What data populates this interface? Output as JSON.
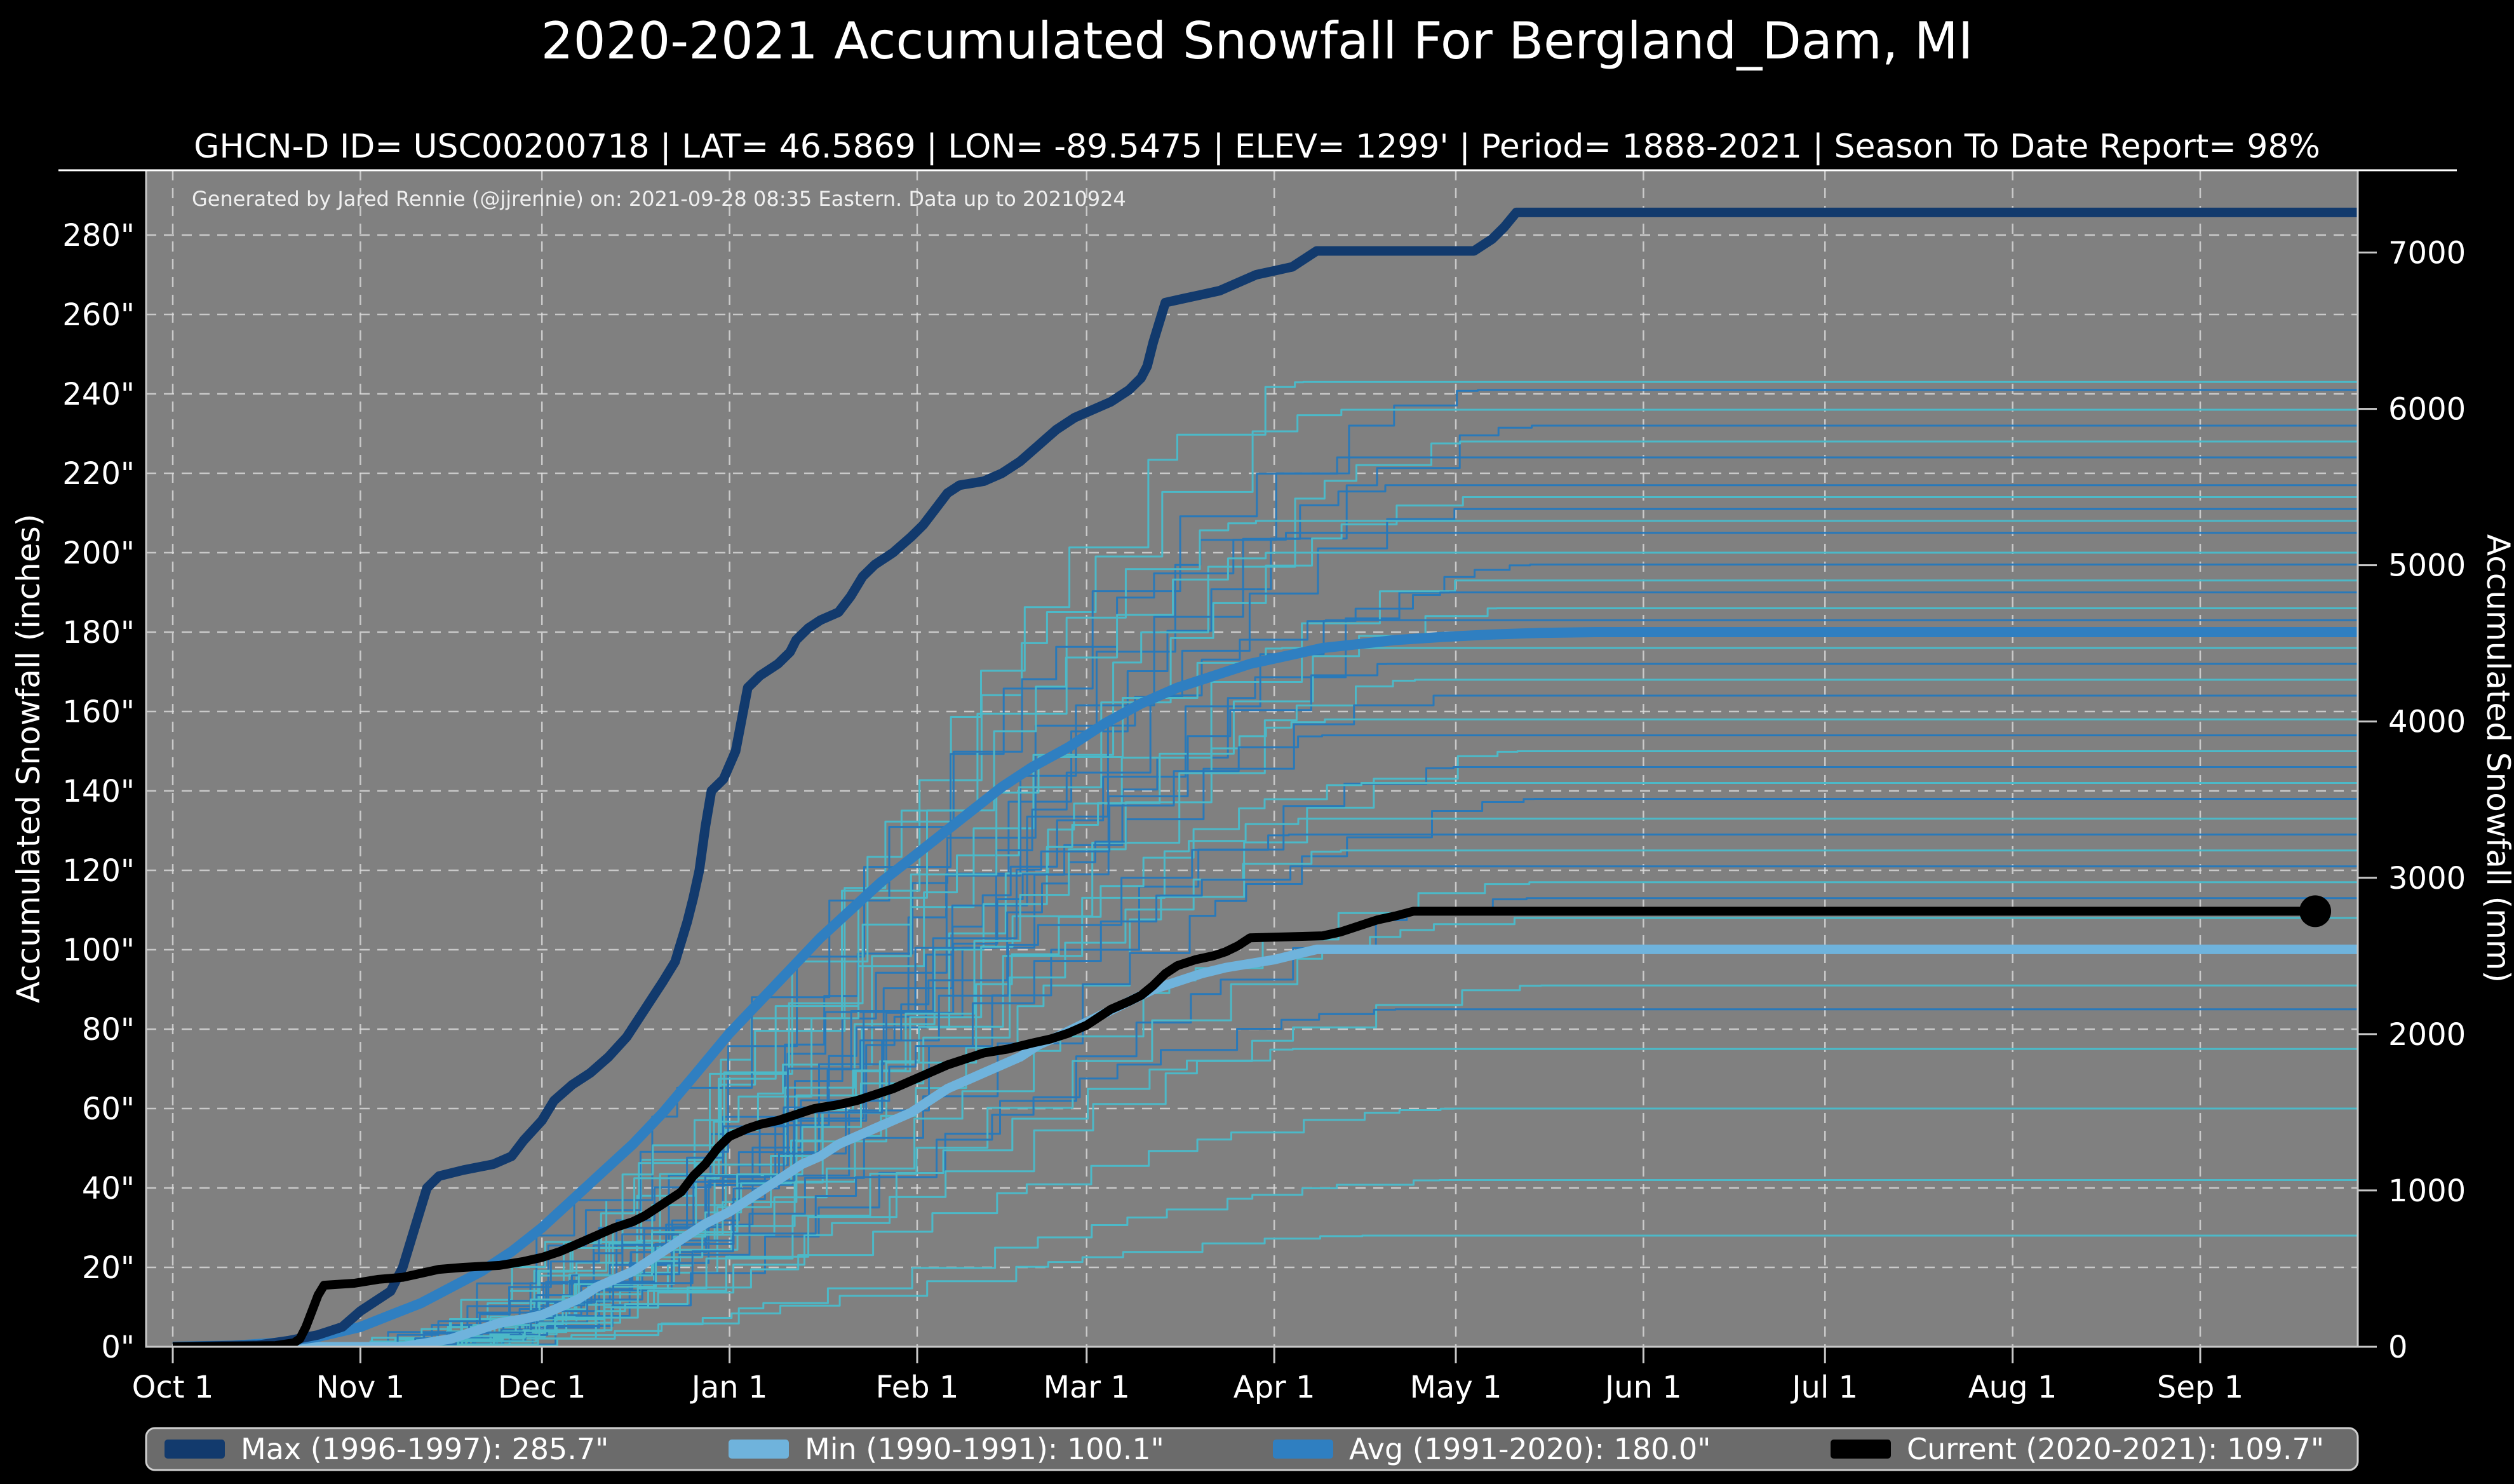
{
  "title": "2020-2021 Accumulated Snowfall For Bergland_Dam, MI",
  "subtitle": "GHCN-D ID= USC00200718 | LAT= 46.5869 | LON= -89.5475 | ELEV= 1299' | Period= 1888-2021 | Season To Date Report= 98%",
  "annotation": "Generated by Jared Rennie (@jjrennie) on: 2021-09-28 08:35 Eastern. Data up to 20210924",
  "colors": {
    "figure_bg": "#000000",
    "plot_bg": "#808080",
    "grid": "#dcdcdc",
    "spine": "#c8c8c8",
    "max": "#123a6d",
    "min": "#6fb3dc",
    "avg": "#2f7fc1",
    "current": "#000000",
    "thin_blue": "#2979b9",
    "thin_teal": "#4cb9c8",
    "legend_bg": "#6b6b6b",
    "legend_border": "#cfcfcf"
  },
  "chart_data": {
    "type": "line",
    "title": "2020-2021 Accumulated Snowfall For Bergland_Dam, MI",
    "subtitle": "GHCN-D ID= USC00200718 | LAT= 46.5869 | LON= -89.5475 | ELEV= 1299' | Period= 1888-2021 | Season To Date Report= 98%",
    "annotation": "Generated by Jared Rennie (@jjrennie) on: 2021-09-28 08:35 Eastern. Data up to 20210924",
    "ylabel_left": "Accumulated Snowfall (inches)",
    "ylabel_right": "Accumulated Snowfall (mm)",
    "grid": true,
    "legend_position": "bottom",
    "x_tick_labels": [
      "Oct 1",
      "Nov 1",
      "Dec 1",
      "Jan 1",
      "Feb 1",
      "Mar 1",
      "Apr 1",
      "May 1",
      "Jun 1",
      "Jul 1",
      "Aug 1",
      "Sep 1"
    ],
    "x_tick_days": [
      0,
      31,
      61,
      92,
      123,
      151,
      182,
      212,
      243,
      273,
      304,
      335
    ],
    "x_range_days": [
      0,
      365
    ],
    "y_left_tick_values": [
      0,
      20,
      40,
      60,
      80,
      100,
      120,
      140,
      160,
      180,
      200,
      220,
      240,
      260,
      280
    ],
    "y_left_tick_labels": [
      "0\"",
      "20\"",
      "40\"",
      "60\"",
      "80\"",
      "100\"",
      "120\"",
      "140\"",
      "160\"",
      "180\"",
      "200\"",
      "220\"",
      "240\"",
      "260\"",
      "280\""
    ],
    "y_right_tick_values": [
      0,
      1000,
      2000,
      3000,
      4000,
      5000,
      6000,
      7000
    ],
    "y_right_tick_labels": [
      "0",
      "1000",
      "2000",
      "3000",
      "4000",
      "5000",
      "6000",
      "7000"
    ],
    "ylim_inches": [
      0,
      296.3
    ],
    "legend": [
      {
        "label": "Max (1996-1997):  285.7\"",
        "color_key": "max"
      },
      {
        "label": "Min (1990-1991):  100.1\"",
        "color_key": "min"
      },
      {
        "label": "Avg (1991-2020):  180.0\"",
        "color_key": "avg"
      },
      {
        "label": "Current (2020-2021):  109.7\"",
        "color_key": "current"
      }
    ],
    "series": [
      {
        "name": "Min (1990-1991)",
        "total_inches": 100.1,
        "color_key": "min",
        "width": 15,
        "points": [
          [
            0,
            0
          ],
          [
            38,
            0
          ],
          [
            42,
            1
          ],
          [
            46,
            2
          ],
          [
            50,
            4
          ],
          [
            54,
            6
          ],
          [
            58,
            7
          ],
          [
            61,
            8
          ],
          [
            64,
            10
          ],
          [
            67,
            12
          ],
          [
            70,
            15
          ],
          [
            73,
            17
          ],
          [
            76,
            19
          ],
          [
            79,
            22
          ],
          [
            82,
            25
          ],
          [
            85,
            28
          ],
          [
            88,
            31
          ],
          [
            92,
            34
          ],
          [
            95,
            37
          ],
          [
            98,
            40
          ],
          [
            101,
            43
          ],
          [
            104,
            46
          ],
          [
            107,
            48
          ],
          [
            110,
            51
          ],
          [
            113,
            53
          ],
          [
            116,
            55
          ],
          [
            119,
            57
          ],
          [
            122,
            59
          ],
          [
            125,
            62
          ],
          [
            128,
            65
          ],
          [
            131,
            67
          ],
          [
            134,
            69
          ],
          [
            137,
            71
          ],
          [
            140,
            73
          ],
          [
            143,
            76
          ],
          [
            146,
            78
          ],
          [
            150,
            81
          ],
          [
            154,
            84
          ],
          [
            158,
            87
          ],
          [
            162,
            90
          ],
          [
            166,
            92
          ],
          [
            170,
            94
          ],
          [
            174,
            95.5
          ],
          [
            178,
            96.5
          ],
          [
            182,
            97.5
          ],
          [
            186,
            99
          ],
          [
            189,
            100.1
          ],
          [
            365,
            100.1
          ]
        ]
      },
      {
        "name": "Avg (1991-2020)",
        "total_inches": 180.0,
        "color_key": "avg",
        "width": 16,
        "points": [
          [
            0,
            0
          ],
          [
            10,
            0.3
          ],
          [
            17,
            1
          ],
          [
            24,
            2.5
          ],
          [
            31,
            5
          ],
          [
            36,
            8
          ],
          [
            41,
            11
          ],
          [
            46,
            15
          ],
          [
            51,
            19
          ],
          [
            56,
            24
          ],
          [
            61,
            30
          ],
          [
            66,
            37
          ],
          [
            71,
            44
          ],
          [
            76,
            51
          ],
          [
            81,
            59
          ],
          [
            86,
            68
          ],
          [
            92,
            79
          ],
          [
            97,
            87
          ],
          [
            102,
            95
          ],
          [
            107,
            103
          ],
          [
            112,
            110
          ],
          [
            117,
            117
          ],
          [
            122,
            123
          ],
          [
            127,
            129
          ],
          [
            132,
            135
          ],
          [
            137,
            141
          ],
          [
            142,
            146
          ],
          [
            148,
            151
          ],
          [
            154,
            157
          ],
          [
            160,
            162
          ],
          [
            166,
            166
          ],
          [
            172,
            169
          ],
          [
            178,
            172
          ],
          [
            184,
            174
          ],
          [
            190,
            176
          ],
          [
            196,
            177
          ],
          [
            202,
            178
          ],
          [
            210,
            178.8
          ],
          [
            218,
            179.4
          ],
          [
            226,
            179.8
          ],
          [
            235,
            180
          ],
          [
            365,
            180
          ]
        ]
      },
      {
        "name": "Max (1996-1997)",
        "total_inches": 285.7,
        "color_key": "max",
        "width": 15,
        "points": [
          [
            0,
            0
          ],
          [
            14,
            0.4
          ],
          [
            19,
            1.5
          ],
          [
            24,
            3
          ],
          [
            28,
            5
          ],
          [
            31,
            9
          ],
          [
            33,
            11
          ],
          [
            36,
            14
          ],
          [
            38,
            20
          ],
          [
            40,
            30
          ],
          [
            42,
            40
          ],
          [
            44,
            43
          ],
          [
            48,
            44.5
          ],
          [
            53,
            46
          ],
          [
            56,
            48
          ],
          [
            58,
            52
          ],
          [
            61,
            57
          ],
          [
            63,
            62
          ],
          [
            66,
            66
          ],
          [
            69,
            69
          ],
          [
            72,
            73
          ],
          [
            75,
            78
          ],
          [
            78,
            85
          ],
          [
            81,
            92
          ],
          [
            83,
            97
          ],
          [
            85,
            107
          ],
          [
            86,
            113
          ],
          [
            87,
            120
          ],
          [
            88,
            131
          ],
          [
            89,
            140
          ],
          [
            91,
            143
          ],
          [
            93,
            150
          ],
          [
            94,
            158
          ],
          [
            95,
            166
          ],
          [
            97,
            169
          ],
          [
            100,
            172
          ],
          [
            102,
            175
          ],
          [
            103,
            178
          ],
          [
            105,
            181
          ],
          [
            107,
            183
          ],
          [
            110,
            185
          ],
          [
            112,
            189
          ],
          [
            114,
            194
          ],
          [
            116,
            197
          ],
          [
            119,
            200
          ],
          [
            122,
            204
          ],
          [
            124,
            207
          ],
          [
            126,
            211
          ],
          [
            128,
            215
          ],
          [
            130,
            217
          ],
          [
            134,
            218
          ],
          [
            137,
            220
          ],
          [
            140,
            223
          ],
          [
            143,
            227
          ],
          [
            146,
            231
          ],
          [
            149,
            234
          ],
          [
            152,
            236
          ],
          [
            155,
            238
          ],
          [
            158,
            241
          ],
          [
            160,
            244
          ],
          [
            161,
            247
          ],
          [
            162,
            253
          ],
          [
            164,
            263
          ],
          [
            167,
            264
          ],
          [
            170,
            265
          ],
          [
            173,
            266
          ],
          [
            176,
            268
          ],
          [
            179,
            270
          ],
          [
            182,
            271
          ],
          [
            185,
            272
          ],
          [
            187,
            274
          ],
          [
            189,
            276
          ],
          [
            215,
            276
          ],
          [
            218,
            279
          ],
          [
            220,
            282
          ],
          [
            222,
            285.7
          ],
          [
            365,
            285.7
          ]
        ]
      },
      {
        "name": "Current (2020-2021)",
        "total_inches": 109.7,
        "color_key": "current",
        "width": 14,
        "end_marker_day": 354,
        "points": [
          [
            0,
            0
          ],
          [
            17,
            0.3
          ],
          [
            20,
            1
          ],
          [
            21,
            2
          ],
          [
            22,
            5
          ],
          [
            23,
            9
          ],
          [
            24,
            13
          ],
          [
            25,
            15.5
          ],
          [
            30,
            16
          ],
          [
            34,
            17
          ],
          [
            38,
            17.5
          ],
          [
            41,
            18.5
          ],
          [
            44,
            19.5
          ],
          [
            48,
            20
          ],
          [
            54,
            20.5
          ],
          [
            58,
            21.5
          ],
          [
            61,
            22.5
          ],
          [
            64,
            24
          ],
          [
            67,
            26
          ],
          [
            70,
            28
          ],
          [
            73,
            30
          ],
          [
            76,
            31.5
          ],
          [
            78,
            33
          ],
          [
            80,
            35
          ],
          [
            82,
            37
          ],
          [
            84,
            39
          ],
          [
            86,
            43
          ],
          [
            88,
            46
          ],
          [
            90,
            50
          ],
          [
            92,
            53
          ],
          [
            95,
            55
          ],
          [
            97,
            56
          ],
          [
            100,
            57
          ],
          [
            103,
            58.5
          ],
          [
            106,
            60
          ],
          [
            110,
            61
          ],
          [
            113,
            62
          ],
          [
            116,
            63.5
          ],
          [
            119,
            65
          ],
          [
            122,
            67
          ],
          [
            125,
            69
          ],
          [
            128,
            71
          ],
          [
            131,
            72.5
          ],
          [
            134,
            74
          ],
          [
            138,
            75
          ],
          [
            142,
            76.5
          ],
          [
            145,
            77.5
          ],
          [
            148,
            79
          ],
          [
            151,
            81
          ],
          [
            153,
            83
          ],
          [
            155,
            85
          ],
          [
            158,
            87
          ],
          [
            160,
            88.5
          ],
          [
            162,
            91
          ],
          [
            164,
            94
          ],
          [
            166,
            96
          ],
          [
            169,
            97.5
          ],
          [
            172,
            98.5
          ],
          [
            174,
            99.5
          ],
          [
            176,
            101
          ],
          [
            178,
            103
          ],
          [
            190,
            103.5
          ],
          [
            193,
            104.5
          ],
          [
            196,
            106
          ],
          [
            199,
            107.5
          ],
          [
            202,
            108.5
          ],
          [
            205,
            109.7
          ],
          [
            354,
            109.7
          ]
        ]
      }
    ],
    "background_years_note": "thin lines = individual seasons 1888-2021; [final_total_inches, shade] shade 0=blue 1=teal",
    "background_years": [
      [
        243,
        1
      ],
      [
        241,
        0
      ],
      [
        236,
        1
      ],
      [
        232,
        0
      ],
      [
        228,
        1
      ],
      [
        224,
        0
      ],
      [
        217,
        0
      ],
      [
        214,
        1
      ],
      [
        211,
        0
      ],
      [
        208,
        1
      ],
      [
        205,
        0
      ],
      [
        200,
        1
      ],
      [
        197,
        0
      ],
      [
        193,
        1
      ],
      [
        190,
        0
      ],
      [
        186,
        1
      ],
      [
        183,
        0
      ],
      [
        176,
        1
      ],
      [
        172,
        0
      ],
      [
        168,
        1
      ],
      [
        164,
        0
      ],
      [
        158,
        1
      ],
      [
        154,
        0
      ],
      [
        150,
        1
      ],
      [
        146,
        0
      ],
      [
        142,
        1
      ],
      [
        138,
        0
      ],
      [
        133,
        1
      ],
      [
        129,
        0
      ],
      [
        125,
        1
      ],
      [
        121,
        0
      ],
      [
        117,
        1
      ],
      [
        113,
        0
      ],
      [
        108,
        1
      ],
      [
        91,
        1
      ],
      [
        85,
        0
      ],
      [
        75,
        1
      ],
      [
        60,
        1
      ],
      [
        42,
        1
      ],
      [
        28,
        1
      ]
    ]
  }
}
